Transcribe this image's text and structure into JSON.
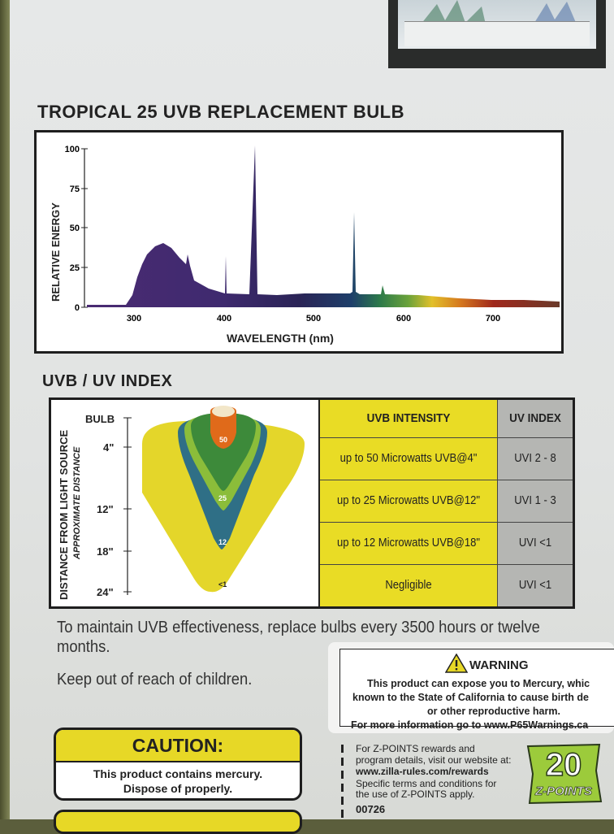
{
  "spectrum": {
    "title": "TROPICAL 25 UVB REPLACEMENT BULB",
    "ylabel": "RELATIVE ENERGY",
    "xlabel": "WAVELENGTH (nm)",
    "y_ticks": [
      "0",
      "25",
      "50",
      "75",
      "100"
    ],
    "x_ticks": [
      "300",
      "400",
      "500",
      "600",
      "700"
    ]
  },
  "uv_index": {
    "title": "UVB / UV INDEX",
    "axis_label": "DISTANCE FROM LIGHT SOURCE",
    "axis_sublabel": "APPROXIMATE DISTANCE",
    "distances": [
      "BULB",
      "4\"",
      "12\"",
      "18\"",
      "24\""
    ],
    "zone_labels": [
      "50",
      "25",
      "12",
      "<1"
    ],
    "header_intensity": "UVB INTENSITY",
    "header_uvi": "UV INDEX",
    "rows": [
      {
        "intensity": "up to 50 Microwatts UVB@4\"",
        "uvi": "UVI 2 - 8"
      },
      {
        "intensity": "up to 25 Microwatts UVB@12\"",
        "uvi": "UVI 1 - 3"
      },
      {
        "intensity": "up to 12 Microwatts UVB@18\"",
        "uvi": "UVI <1"
      },
      {
        "intensity": "Negligible",
        "uvi": "UVI <1"
      }
    ]
  },
  "maintenance_text": "To maintain UVB effectiveness, replace bulbs every 3500 hours or twelve months.",
  "keep_out_text": "Keep out of reach of children.",
  "warning": {
    "heading": "WARNING",
    "lines": [
      "This product can expose you to Mercury, whic",
      "known to the State of California to cause birth de",
      "or other reproductive harm.",
      "For more information go to www.P65Warnings.ca"
    ]
  },
  "caution": {
    "heading": "CAUTION:",
    "line1": "This product contains mercury.",
    "line2": "Dispose of properly."
  },
  "zpoints": {
    "lines": [
      "For Z-POINTS rewards and",
      "program details, visit our website at:",
      "www.zilla-rules.com/rewards",
      "Specific terms and conditions for",
      "the use of Z-POINTS apply.",
      "00726"
    ],
    "badge_number": "20",
    "badge_text": "Z-POINTS"
  },
  "colors": {
    "yellow": "#e7d826",
    "gray_col": "#b5b6b3",
    "zone_yellow": "#e4d62a",
    "zone_green": "#3d8a3a",
    "zone_teal": "#2f6f86",
    "zone_orange": "#e06a1a",
    "badge_green": "#9ccb3b"
  }
}
